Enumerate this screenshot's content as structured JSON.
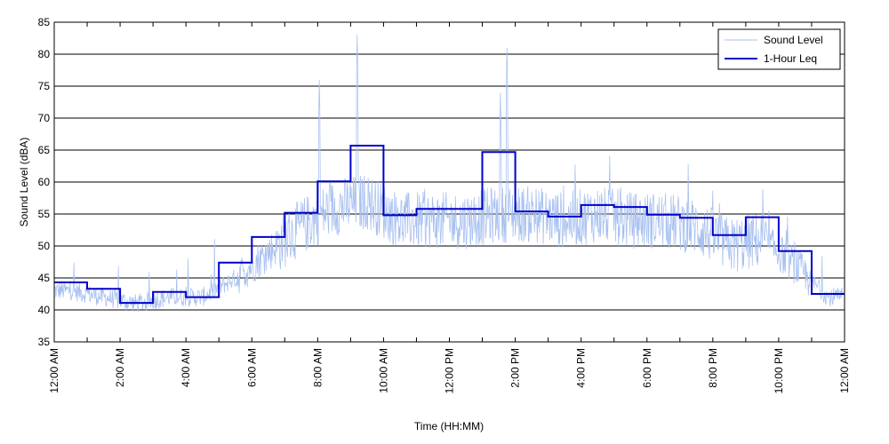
{
  "chart_data": {
    "type": "line",
    "xlabel": "Time (HH:MM)",
    "ylabel": "Sound Level (dBA)",
    "ylim": [
      35,
      85
    ],
    "xlim_hours": [
      0,
      24
    ],
    "y_ticks": [
      35,
      40,
      45,
      50,
      55,
      60,
      65,
      70,
      75,
      80,
      85
    ],
    "x_tick_hours": [
      0,
      2,
      4,
      6,
      8,
      10,
      12,
      14,
      16,
      18,
      20,
      22,
      24
    ],
    "x_tick_labels": [
      "12:00 AM",
      "2:00 AM",
      "4:00 AM",
      "6:00 AM",
      "8:00 AM",
      "10:00 AM",
      "12:00 PM",
      "2:00 PM",
      "4:00 PM",
      "6:00 PM",
      "8:00 PM",
      "10:00 PM",
      "12:00 AM"
    ],
    "grid": "horizontal",
    "legend_position": "top-right",
    "series": [
      {
        "name": "Sound Level",
        "color": "#a9c1f0",
        "style": "thin noisy line",
        "hourly_typical_dBA": [
          43,
          42,
          41,
          42,
          42,
          45,
          49,
          53,
          56,
          57,
          54,
          54,
          54,
          55,
          55,
          54,
          55,
          54,
          54,
          53,
          50,
          51,
          47,
          42
        ],
        "peaks": [
          {
            "hour": 8.05,
            "value": 76
          },
          {
            "hour": 9.2,
            "value": 83
          },
          {
            "hour": 13.55,
            "value": 74
          },
          {
            "hour": 13.75,
            "value": 81
          }
        ]
      },
      {
        "name": "1-Hour Leq",
        "color": "#0000cc",
        "style": "step",
        "x_hours": [
          0,
          1,
          2,
          3,
          4,
          5,
          6,
          7,
          8,
          9,
          10,
          11,
          12,
          13,
          14,
          15,
          16,
          17,
          18,
          19,
          20,
          21,
          22,
          23
        ],
        "values": [
          44.3,
          43.3,
          41.1,
          42.8,
          42.0,
          47.4,
          51.4,
          55.2,
          60.1,
          65.7,
          54.8,
          55.8,
          55.8,
          64.7,
          55.4,
          54.6,
          56.4,
          56.1,
          54.9,
          54.4,
          51.7,
          54.5,
          49.2,
          42.5
        ]
      }
    ]
  }
}
